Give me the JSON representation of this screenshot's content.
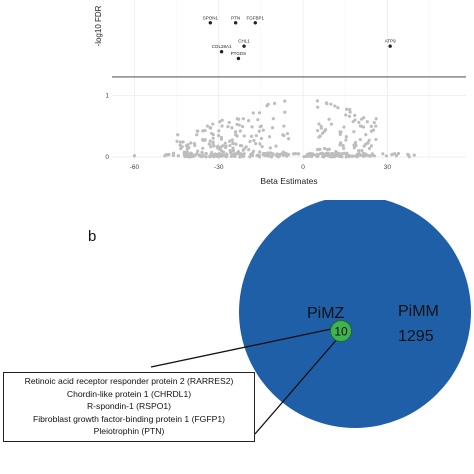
{
  "chart_data": [
    {
      "type": "scatter",
      "title": "",
      "xlabel": "Beta Estimates",
      "ylabel": "-log10 FDR",
      "xlim": [
        -68,
        58
      ],
      "ylim": [
        -0.05,
        2.55
      ],
      "x_ticks": [
        -60,
        -30,
        0,
        30
      ],
      "y_ticks": [
        0,
        1
      ],
      "grid": true,
      "threshold_line": {
        "y": 1.3
      },
      "labeled_points": [
        {
          "label": "SPON1",
          "x": -33,
          "y": 2.18
        },
        {
          "label": "PTN",
          "x": -24,
          "y": 2.18
        },
        {
          "label": "FGFBP1",
          "x": -17,
          "y": 2.18
        },
        {
          "label": "CHL1",
          "x": -21,
          "y": 1.8
        },
        {
          "label": "COL28A1",
          "x": -29,
          "y": 1.71
        },
        {
          "label": "PTGDS",
          "x": -23,
          "y": 1.6
        },
        {
          "label": "ATP9",
          "x": 31,
          "y": 1.8
        }
      ],
      "background_points": {
        "count": 420,
        "color": "#bdbdbd",
        "x_range": [
          -50,
          40
        ],
        "y_range": [
          0,
          1.05
        ]
      }
    },
    {
      "type": "venn",
      "panel_label": "b",
      "sets": [
        {
          "name": "PiMM",
          "count": "1295",
          "color": "#1f5fa8"
        },
        {
          "name": "PiMZ",
          "count": "10",
          "color": "#3fb34f"
        }
      ]
    }
  ],
  "panel_b": {
    "letter": "b",
    "pimm_label": "PiMM",
    "pimm_count": "1295",
    "pimz_label": "PiMZ",
    "pimz_count": "10"
  },
  "proteins": [
    "Retinoic acid receptor responder protein 2 (RARRES2)",
    "Chordin-like protein 1 (CHRDL1)",
    "R-spondin-1 (RSPO1)",
    "Fibroblast growth factor-binding protein 1 (FGFP1)",
    "Pleiotrophin (PTN)"
  ]
}
